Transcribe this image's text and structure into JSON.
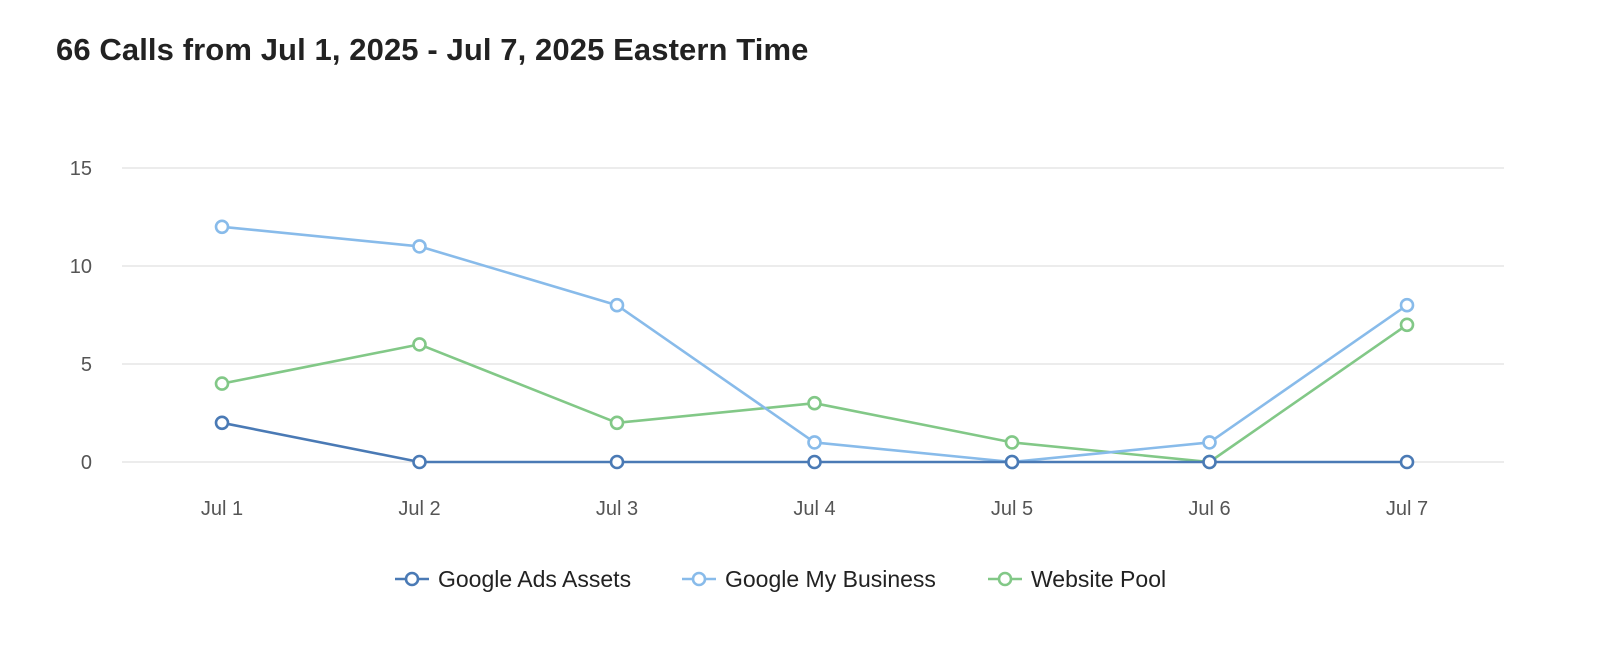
{
  "chart_data": {
    "type": "line",
    "title": "66 Calls from Jul 1, 2025 - Jul 7, 2025 Eastern Time",
    "xlabel": "",
    "ylabel": "",
    "categories": [
      "Jul 1",
      "Jul 2",
      "Jul 3",
      "Jul 4",
      "Jul 5",
      "Jul 6",
      "Jul 7"
    ],
    "ylim": [
      0,
      15
    ],
    "yticks": [
      "0",
      "5",
      "10",
      "15"
    ],
    "grid": true,
    "legend_position": "bottom-center",
    "series": [
      {
        "name": "Google Ads Assets",
        "color": "#4a7ab5",
        "values": [
          2,
          0,
          0,
          0,
          0,
          0,
          0
        ]
      },
      {
        "name": "Google My Business",
        "color": "#88bbea",
        "values": [
          12,
          11,
          8,
          1,
          0,
          1,
          8
        ]
      },
      {
        "name": "Website Pool",
        "color": "#82c887",
        "values": [
          4,
          6,
          2,
          3,
          1,
          0,
          7
        ]
      }
    ]
  }
}
